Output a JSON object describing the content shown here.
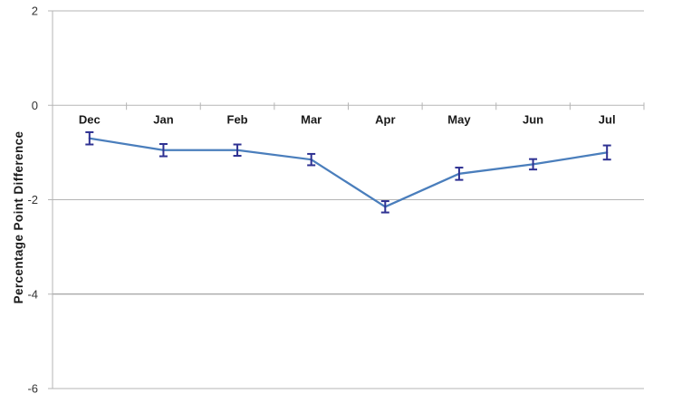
{
  "chart_data": {
    "type": "line",
    "title": "",
    "xlabel": "",
    "ylabel": "Percentage Point Difference",
    "categories": [
      "Dec",
      "Jan",
      "Feb",
      "Mar",
      "Apr",
      "May",
      "Jun",
      "Jul"
    ],
    "values": [
      -0.7,
      -0.95,
      -0.95,
      -1.15,
      -2.15,
      -1.45,
      -1.25,
      -1.0
    ],
    "error_bars": [
      0.13,
      0.13,
      0.12,
      0.12,
      0.12,
      0.13,
      0.11,
      0.15
    ],
    "ylim": [
      -6,
      2
    ],
    "yticks": [
      2,
      0,
      -2,
      -4,
      -6
    ],
    "ytick_labels": [
      "2",
      "0",
      "-2",
      "-4",
      "-6"
    ],
    "grid": true,
    "legend": false,
    "category_axis_position": "zero",
    "colors": {
      "line": "#4a7ebc",
      "error_bar": "#2e3192",
      "gridlines": [
        "#b5b5b5",
        "#b5b5b5",
        "#b5b5b5",
        "#8a8a8a",
        "#b5b5b5"
      ],
      "axis": "#b5b5b5",
      "category_label": "#1a1a1a",
      "tick_label": "#333333"
    }
  }
}
